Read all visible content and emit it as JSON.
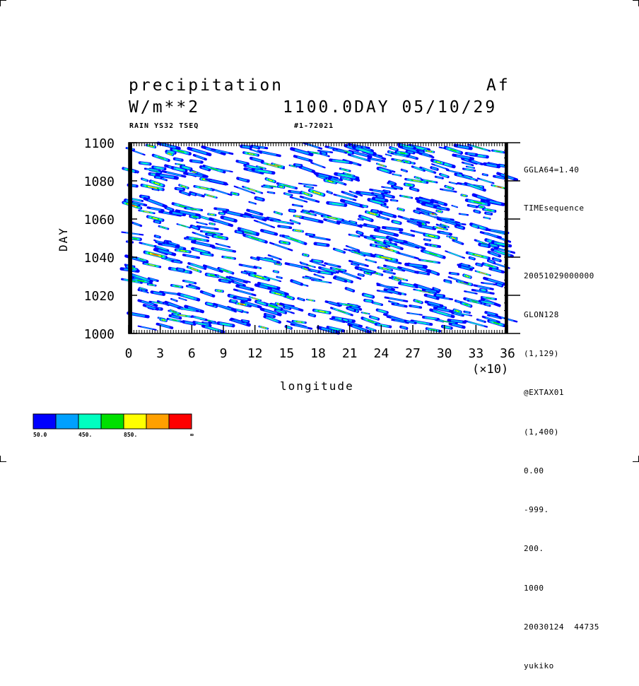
{
  "header": {
    "title": "precipitation",
    "code": "Af",
    "units": "W/m**2",
    "time": "1100.0DAY 05/10/29",
    "sub_left": "RAIN YS32 TSEQ",
    "sub_right": "#1-72021"
  },
  "side_info": {
    "top": [
      "GGLA64=1.40",
      "TIMEsequence"
    ],
    "bottom": [
      "20051029000000",
      "GLON128",
      "(1,129)",
      "@EXTAX01",
      "(1,400)",
      "0.00",
      "-999.",
      "200.",
      "1000",
      "20030124  44735",
      "yukiko"
    ]
  },
  "legend": {
    "colors": [
      "#0000ff",
      "#00a0ff",
      "#00ffc0",
      "#00e000",
      "#ffff00",
      "#ffa000",
      "#ff0000"
    ],
    "labels": [
      "50.0",
      "450.",
      "850.",
      "∞"
    ]
  },
  "chart_data": {
    "type": "heatmap",
    "xlabel": "longitude",
    "ylabel": "DAY",
    "x_multiplier": "(×10)",
    "xlim": [
      0,
      36
    ],
    "ylim": [
      1000,
      1100
    ],
    "x_ticks": [
      0,
      3,
      6,
      9,
      12,
      15,
      18,
      21,
      24,
      27,
      30,
      33,
      36
    ],
    "y_ticks": [
      1000,
      1020,
      1040,
      1060,
      1080,
      1100
    ],
    "color_levels": [
      50,
      250,
      450,
      650,
      850,
      1050,
      1250
    ]
  }
}
